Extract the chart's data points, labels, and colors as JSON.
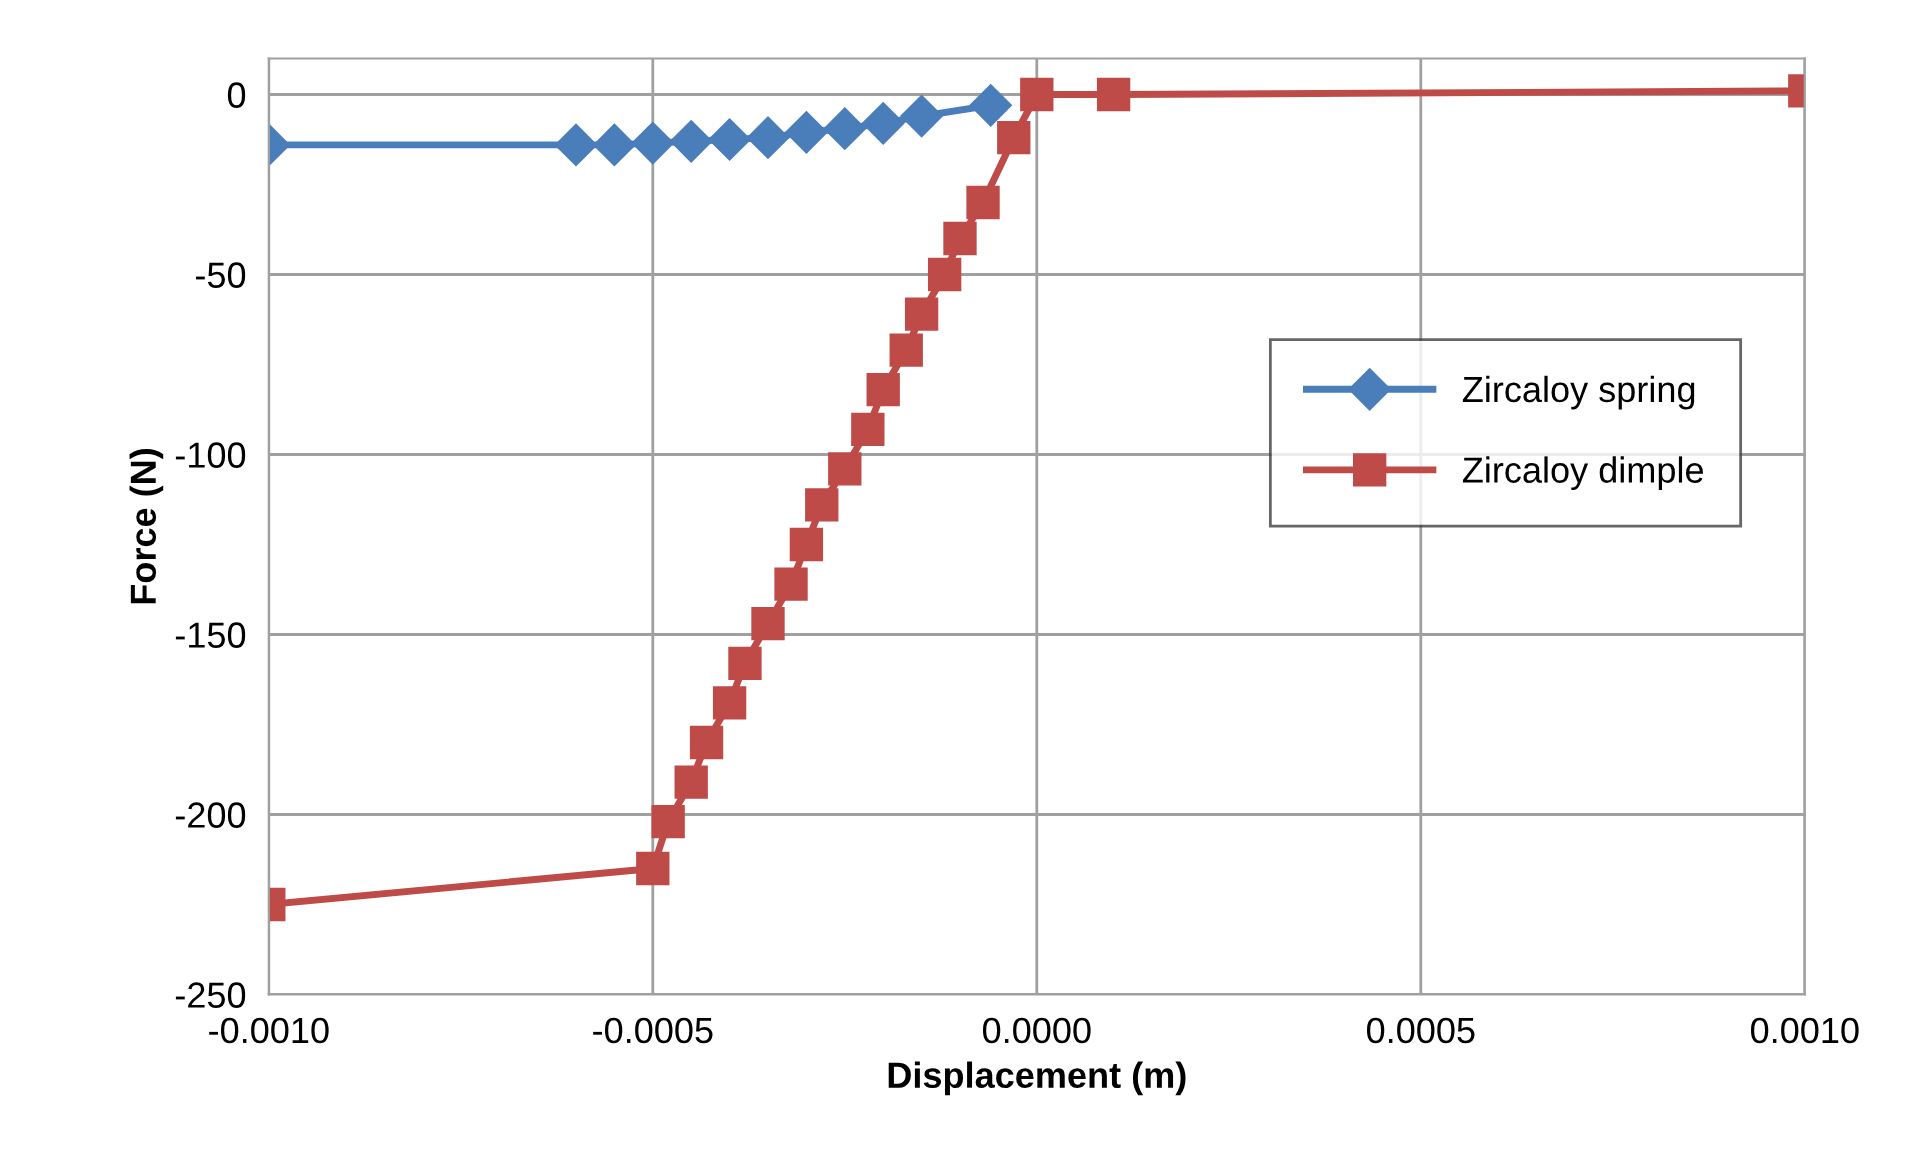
{
  "chart_data": {
    "type": "line",
    "xlabel": "Displacement (m)",
    "ylabel": "Force (N)",
    "xlim": [
      -0.001,
      0.001
    ],
    "xticks": [
      {
        "value": -0.001,
        "label": "-0.0010"
      },
      {
        "value": -0.0005,
        "label": "-0.0005"
      },
      {
        "value": 0,
        "label": "0.0000"
      },
      {
        "value": 0.0005,
        "label": "0.0005"
      },
      {
        "value": 0.001,
        "label": "0.0010"
      }
    ],
    "ylim": [
      -250,
      10
    ],
    "yticks": [
      -250,
      -200,
      -150,
      -100,
      -50,
      0
    ],
    "grid": true,
    "legend": "right",
    "series": [
      {
        "name": "Zircaloy spring",
        "color": "#4a7ebb",
        "marker": "diamond",
        "x": [
          -0.001,
          -0.0006,
          -0.00055,
          -0.0005,
          -0.00045,
          -0.0004,
          -0.00035,
          -0.0003,
          -0.00025,
          -0.0002,
          -0.00015,
          -6e-05
        ],
        "values": [
          -14,
          -14,
          -14,
          -13.5,
          -13,
          -12.5,
          -12,
          -10.5,
          -9.5,
          -8,
          -6,
          -3
        ]
      },
      {
        "name": "Zircaloy dimple",
        "color": "#be4b48",
        "marker": "square",
        "x": [
          -0.001,
          -0.0005,
          -0.00048,
          -0.00045,
          -0.00043,
          -0.0004,
          -0.00038,
          -0.00035,
          -0.00032,
          -0.0003,
          -0.00028,
          -0.00025,
          -0.00022,
          -0.0002,
          -0.00017,
          -0.00015,
          -0.00012,
          -0.0001,
          -7e-05,
          -3e-05,
          0,
          0.0001,
          0.001
        ],
        "values": [
          -225,
          -215,
          -202,
          -191,
          -180,
          -169,
          -158,
          -147,
          -136,
          -125,
          -114,
          -104,
          -93,
          -82,
          -71,
          -61,
          -50,
          -40,
          -30,
          -12,
          0,
          0,
          1
        ]
      }
    ]
  }
}
